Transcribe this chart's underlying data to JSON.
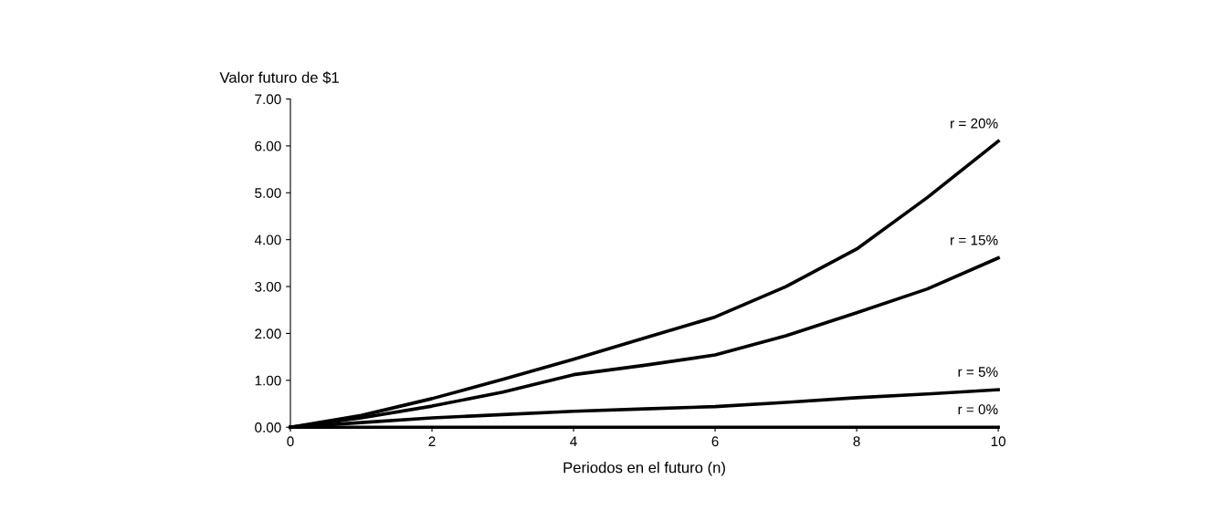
{
  "chart_data": {
    "type": "line",
    "ylabel": "Valor futuro de $1",
    "xlabel": "Periodos en el futuro (n)",
    "x": [
      0,
      1,
      2,
      3,
      4,
      5,
      6,
      7,
      8,
      9,
      10
    ],
    "series": [
      {
        "name": "r = 20%",
        "color": "#000000",
        "values": [
          0,
          0.25,
          0.61,
          1.02,
          1.45,
          1.9,
          2.35,
          3.0,
          3.8,
          4.9,
          6.1
        ]
      },
      {
        "name": "r = 15%",
        "color": "#000000",
        "values": [
          0,
          0.2,
          0.45,
          0.75,
          1.12,
          1.32,
          1.54,
          1.95,
          2.44,
          2.95,
          3.61
        ]
      },
      {
        "name": "r = 5%",
        "color": "#000000",
        "values": [
          0,
          0.1,
          0.2,
          0.27,
          0.34,
          0.39,
          0.44,
          0.53,
          0.63,
          0.71,
          0.8
        ]
      },
      {
        "name": "r = 0%",
        "color": "#000000",
        "values": [
          0,
          0,
          0,
          0,
          0,
          0,
          0,
          0,
          0,
          0,
          0
        ]
      }
    ],
    "xlim": [
      0,
      10
    ],
    "xticks": [
      0,
      2,
      4,
      6,
      8,
      10
    ],
    "ylim": [
      0,
      7
    ],
    "yticks": [
      {
        "value": 0,
        "label": "0.00"
      },
      {
        "value": 1,
        "label": "1.00"
      },
      {
        "value": 2,
        "label": "2.00"
      },
      {
        "value": 3,
        "label": "3.00"
      },
      {
        "value": 4,
        "label": "4.00"
      },
      {
        "value": 5,
        "label": "5.00"
      },
      {
        "value": 6,
        "label": "6.00"
      },
      {
        "value": 7,
        "label": "7.00"
      }
    ],
    "grid": false,
    "legend": false,
    "marker": "none",
    "line_style": "solid"
  }
}
